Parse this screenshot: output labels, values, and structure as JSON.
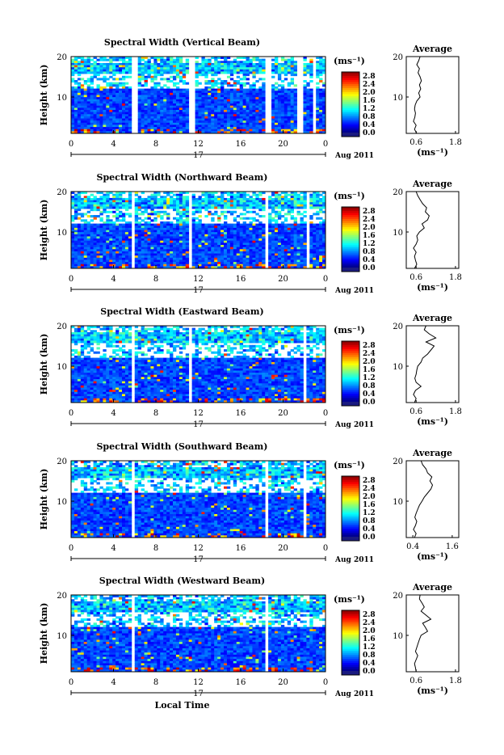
{
  "chart_data": [
    {
      "type": "heatmap",
      "title": "Spectral Width (Vertical Beam)",
      "ylabel": "Height (km)",
      "x_ticks": [
        "0",
        "4",
        "8",
        "12",
        "16",
        "20",
        "0"
      ],
      "y_ticks": [
        "20",
        "10"
      ],
      "xlim": [
        0,
        24
      ],
      "ylim": [
        1,
        20
      ],
      "colorbar": {
        "unit": "(ms⁻¹)",
        "ticks": [
          "2.8",
          "2.4",
          "2.0",
          "1.6",
          "1.2",
          "0.8",
          "0.4",
          "0.0"
        ],
        "range": [
          0,
          3.0
        ]
      },
      "date_day": "17",
      "date_label": "Aug 2011",
      "gaps_hours": [
        [
          5.8,
          6.2
        ],
        [
          11.0,
          11.6
        ],
        [
          18.2,
          18.8
        ],
        [
          21.4,
          21.8
        ],
        [
          22.8,
          23.2
        ]
      ],
      "average": {
        "title": "Average",
        "xlabel": "(ms⁻¹)",
        "x_ticks": [
          "0.6",
          "1.8"
        ],
        "xlim": [
          0.3,
          1.9
        ],
        "y_ticks": [
          "20",
          "10"
        ],
        "height": [
          1,
          2,
          3,
          4,
          5,
          6,
          7,
          8,
          9,
          10,
          11,
          12,
          13,
          14,
          15,
          16,
          17,
          18,
          19,
          20
        ],
        "value": [
          0.62,
          0.55,
          0.6,
          0.52,
          0.56,
          0.58,
          0.55,
          0.57,
          0.62,
          0.72,
          0.68,
          0.74,
          0.7,
          0.76,
          0.72,
          0.66,
          0.7,
          0.62,
          0.68,
          0.72
        ]
      }
    },
    {
      "type": "heatmap",
      "title": "Spectral Width (Northward Beam)",
      "ylabel": "Height (km)",
      "x_ticks": [
        "0",
        "4",
        "8",
        "12",
        "16",
        "20",
        "0"
      ],
      "y_ticks": [
        "20",
        "10"
      ],
      "xlim": [
        0,
        24
      ],
      "ylim": [
        1,
        20
      ],
      "colorbar": {
        "unit": "(ms⁻¹)",
        "ticks": [
          "2.8",
          "2.4",
          "2.0",
          "1.6",
          "1.2",
          "0.8",
          "0.4",
          "0.0"
        ],
        "range": [
          0,
          3.0
        ]
      },
      "date_day": "17",
      "date_label": "Aug 2011",
      "gaps_hours": [
        [
          5.8,
          6.1
        ],
        [
          11.0,
          11.4
        ],
        [
          18.2,
          18.6
        ],
        [
          22.2,
          22.4
        ]
      ],
      "average": {
        "title": "Average",
        "xlabel": "(ms⁻¹)",
        "x_ticks": [
          "0.6",
          "1.8"
        ],
        "xlim": [
          0.3,
          1.9
        ],
        "y_ticks": [
          "20",
          "10"
        ],
        "height": [
          1,
          2,
          3,
          4,
          5,
          6,
          7,
          8,
          9,
          10,
          11,
          12,
          13,
          14,
          15,
          16,
          17,
          18,
          19,
          20
        ],
        "value": [
          0.55,
          0.62,
          0.58,
          0.55,
          0.6,
          0.52,
          0.6,
          0.65,
          0.62,
          0.7,
          0.85,
          0.78,
          0.95,
          1.0,
          0.88,
          0.92,
          0.8,
          0.72,
          0.65,
          0.6
        ]
      }
    },
    {
      "type": "heatmap",
      "title": "Spectral Width (Eastward Beam)",
      "ylabel": "Height (km)",
      "x_ticks": [
        "0",
        "4",
        "8",
        "12",
        "16",
        "20",
        "0"
      ],
      "y_ticks": [
        "20",
        "10"
      ],
      "xlim": [
        0,
        24
      ],
      "ylim": [
        1,
        20
      ],
      "colorbar": {
        "unit": "(ms⁻¹)",
        "ticks": [
          "2.8",
          "2.4",
          "2.0",
          "1.6",
          "1.2",
          "0.8",
          "0.4",
          "0.0"
        ],
        "range": [
          0,
          3.0
        ]
      },
      "date_day": "17",
      "date_label": "Aug 2011",
      "gaps_hours": [
        [
          5.8,
          6.0
        ],
        [
          11.2,
          11.5
        ],
        [
          22.0,
          22.3
        ]
      ],
      "average": {
        "title": "Average",
        "xlabel": "(ms⁻¹)",
        "x_ticks": [
          "0.6",
          "1.8"
        ],
        "xlim": [
          0.3,
          1.9
        ],
        "y_ticks": [
          "20",
          "10"
        ],
        "height": [
          1,
          2,
          3,
          4,
          5,
          6,
          7,
          8,
          9,
          10,
          11,
          12,
          13,
          14,
          15,
          16,
          17,
          18,
          19,
          20
        ],
        "value": [
          0.55,
          0.6,
          0.52,
          0.58,
          0.75,
          0.6,
          0.56,
          0.6,
          0.62,
          0.65,
          0.75,
          0.8,
          0.95,
          1.05,
          1.15,
          0.9,
          1.2,
          1.0,
          0.85,
          0.9
        ]
      }
    },
    {
      "type": "heatmap",
      "title": "Spectral Width (Southward Beam)",
      "ylabel": "Height (km)",
      "x_ticks": [
        "0",
        "4",
        "8",
        "12",
        "16",
        "20",
        "0"
      ],
      "y_ticks": [
        "20",
        "10"
      ],
      "xlim": [
        0,
        24
      ],
      "ylim": [
        1,
        20
      ],
      "colorbar": {
        "unit": "(ms⁻¹)",
        "ticks": [
          "2.8",
          "2.4",
          "2.0",
          "1.6",
          "1.2",
          "0.8",
          "0.4",
          "0.0"
        ],
        "range": [
          0,
          3.0
        ]
      },
      "date_day": "17",
      "date_label": "Aug 2011",
      "gaps_hours": [
        [
          5.8,
          6.0
        ],
        [
          18.2,
          18.5
        ],
        [
          22.0,
          22.2
        ]
      ],
      "average": {
        "title": "Average",
        "xlabel": "(ms⁻¹)",
        "x_ticks": [
          "0.4",
          "1.6"
        ],
        "xlim": [
          0.2,
          1.8
        ],
        "y_ticks": [
          "20",
          "10"
        ],
        "height": [
          1,
          2,
          3,
          4,
          5,
          6,
          7,
          8,
          9,
          10,
          11,
          12,
          13,
          14,
          15,
          16,
          17,
          18,
          19,
          20
        ],
        "value": [
          0.45,
          0.5,
          0.42,
          0.48,
          0.52,
          0.46,
          0.5,
          0.55,
          0.6,
          0.68,
          0.75,
          0.85,
          0.95,
          1.0,
          0.92,
          0.98,
          0.85,
          0.8,
          0.7,
          0.65
        ]
      }
    },
    {
      "type": "heatmap",
      "title": "Spectral Width (Westward Beam)",
      "ylabel": "Height (km)",
      "x_ticks": [
        "0",
        "4",
        "8",
        "12",
        "16",
        "20",
        "0"
      ],
      "y_ticks": [
        "20",
        "10"
      ],
      "xlim": [
        0,
        24
      ],
      "ylim": [
        1,
        20
      ],
      "colorbar": {
        "unit": "(ms⁻¹)",
        "ticks": [
          "2.8",
          "2.4",
          "2.0",
          "1.6",
          "1.2",
          "0.8",
          "0.4",
          "0.0"
        ],
        "range": [
          0,
          3.0
        ]
      },
      "date_day": "17",
      "date_label": "Aug 2011",
      "xlabel": "Local Time",
      "gaps_hours": [
        [
          5.8,
          6.0
        ],
        [
          18.2,
          18.5
        ],
        [
          21.8,
          22.0
        ]
      ],
      "average": {
        "title": "Average",
        "xlabel": "(ms⁻¹)",
        "x_ticks": [
          "0.6",
          "1.8"
        ],
        "xlim": [
          0.3,
          1.9
        ],
        "y_ticks": [
          "20",
          "10"
        ],
        "height": [
          1,
          2,
          3,
          4,
          5,
          6,
          7,
          8,
          9,
          10,
          11,
          12,
          13,
          14,
          15,
          16,
          17,
          18,
          19,
          20
        ],
        "value": [
          0.6,
          0.58,
          0.55,
          0.6,
          0.65,
          0.58,
          0.62,
          0.66,
          0.7,
          0.75,
          0.95,
          0.88,
          0.8,
          1.05,
          0.9,
          0.75,
          0.85,
          0.78,
          0.7,
          0.72
        ]
      }
    }
  ]
}
